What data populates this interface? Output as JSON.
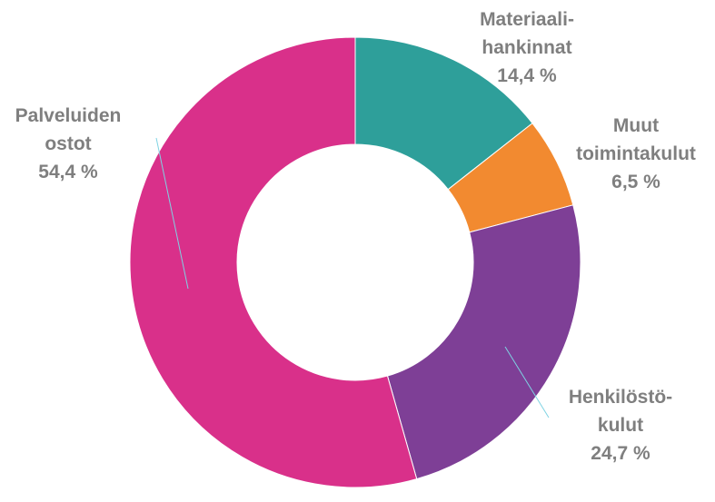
{
  "chart_data": {
    "type": "pie",
    "variant": "donut",
    "slices": [
      {
        "name_lines": [
          "Materiaali-",
          "hankinnat"
        ],
        "value": 14.4,
        "value_label": "14,4 %",
        "color": "#2e9f9a"
      },
      {
        "name_lines": [
          "Muut",
          "toimintakulut"
        ],
        "value": 6.5,
        "value_label": "6,5 %",
        "color": "#f28a30"
      },
      {
        "name_lines": [
          "Henkilöstö-",
          "kulut"
        ],
        "value": 24.7,
        "value_label": "24,7 %",
        "color": "#7e3f96"
      },
      {
        "name_lines": [
          "Palveluiden",
          "ostot"
        ],
        "value": 54.4,
        "value_label": "54,4 %",
        "color": "#d9308a"
      }
    ],
    "start_angle_deg": 0,
    "direction": "clockwise",
    "label_color": "#7f7f7f"
  }
}
